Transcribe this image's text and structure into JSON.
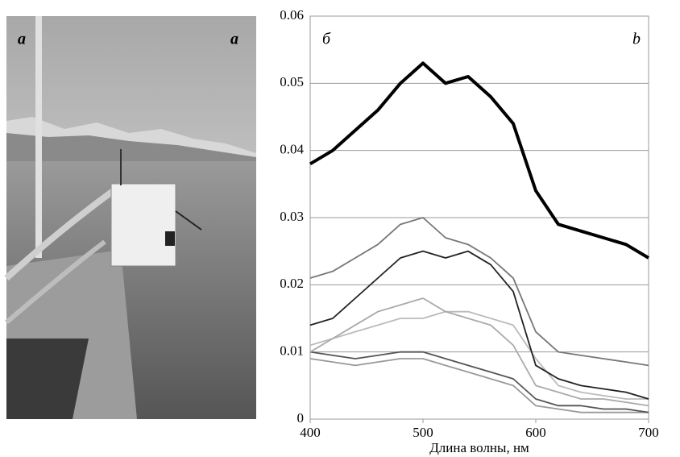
{
  "chart_data": {
    "type": "line",
    "xlabel": "Длина волны, нм",
    "photo_labels": [
      "a",
      "a"
    ],
    "panel_labels": [
      "б",
      "b"
    ],
    "x": [
      400,
      420,
      440,
      460,
      480,
      500,
      520,
      540,
      560,
      580,
      600,
      620,
      640,
      660,
      680,
      700
    ],
    "series": [
      {
        "color": "#000000",
        "values": [
          0.038,
          0.04,
          0.043,
          0.046,
          0.05,
          0.053,
          0.05,
          0.051,
          0.048,
          0.044,
          0.034,
          0.029,
          0.028,
          0.027,
          0.026,
          0.024
        ]
      },
      {
        "color": "#777777",
        "values": [
          0.021,
          0.022,
          0.024,
          0.026,
          0.029,
          0.03,
          0.027,
          0.026,
          0.024,
          0.021,
          0.013,
          0.01,
          0.0095,
          0.009,
          0.0085,
          0.008
        ]
      },
      {
        "color": "#222222",
        "values": [
          0.014,
          0.015,
          0.018,
          0.021,
          0.024,
          0.025,
          0.024,
          0.025,
          0.023,
          0.019,
          0.008,
          0.006,
          0.005,
          0.0045,
          0.004,
          0.003
        ]
      },
      {
        "color": "#aaaaaa",
        "values": [
          0.01,
          0.012,
          0.014,
          0.016,
          0.017,
          0.018,
          0.016,
          0.015,
          0.014,
          0.011,
          0.005,
          0.004,
          0.003,
          0.003,
          0.0025,
          0.002
        ]
      },
      {
        "color": "#bbbbbb",
        "values": [
          0.011,
          0.012,
          0.013,
          0.014,
          0.015,
          0.015,
          0.016,
          0.016,
          0.015,
          0.014,
          0.009,
          0.005,
          0.004,
          0.0035,
          0.003,
          0.003
        ]
      },
      {
        "color": "#555555",
        "values": [
          0.01,
          0.0095,
          0.009,
          0.0095,
          0.01,
          0.01,
          0.009,
          0.008,
          0.007,
          0.006,
          0.003,
          0.002,
          0.002,
          0.0015,
          0.0015,
          0.001
        ]
      },
      {
        "color": "#999999",
        "values": [
          0.009,
          0.0085,
          0.008,
          0.0085,
          0.009,
          0.009,
          0.008,
          0.007,
          0.006,
          0.005,
          0.002,
          0.0015,
          0.001,
          0.001,
          0.001,
          0.001
        ]
      }
    ],
    "xlim": [
      400,
      700
    ],
    "xticks": [
      400,
      500,
      600,
      700
    ],
    "ylim": [
      0,
      0.06
    ],
    "yticks": [
      0,
      0.01,
      0.02,
      0.03,
      0.04,
      0.05,
      0.06
    ],
    "grid": true
  }
}
